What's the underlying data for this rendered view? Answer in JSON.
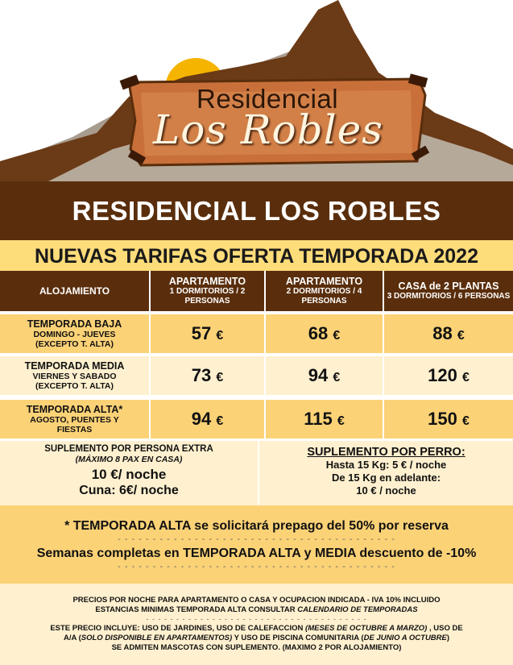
{
  "logo": {
    "line1": "Residencial",
    "line2": "Los Robles"
  },
  "banner_title": "RESIDENCIAL LOS ROBLES",
  "subtitle": "NUEVAS TARIFAS OFERTA TEMPORADA 2022",
  "table": {
    "header": {
      "col0": "ALOJAMIENTO",
      "col1_main": "APARTAMENTO",
      "col1_sub": "1 DORMITORIOS / 2 PERSONAS",
      "col2_main": "APARTAMENTO",
      "col2_sub": "2 DORMITORIOS / 4 PERSONAS",
      "col3_main": "CASA de 2 PLANTAS",
      "col3_sub": "3 DORMITORIOS / 6 PERSONAS"
    },
    "rows": [
      {
        "name": "TEMPORADA BAJA",
        "sub1": "DOMINGO - JUEVES",
        "sub2": "(EXCEPTO T. ALTA)",
        "p1": "57",
        "p2": "68",
        "p3": "88"
      },
      {
        "name": "TEMPORADA MEDIA",
        "sub1": "VIERNES Y SABADO",
        "sub2": "(EXCEPTO T. ALTA)",
        "p1": "73",
        "p2": "94",
        "p3": "120"
      },
      {
        "name": "TEMPORADA ALTA*",
        "sub1": "AGOSTO, PUENTES Y",
        "sub2": "FIESTAS",
        "p1": "94",
        "p2": "115",
        "p3": "150"
      }
    ],
    "currency": "€"
  },
  "supplement": {
    "person_title": "SUPLEMENTO POR PERSONA EXTRA",
    "person_max": "(MÁXIMO 8 PAX EN CASA)",
    "person_price": "10 €/ noche",
    "cradle": "Cuna: 6€/ noche",
    "dog_title": "SUPLEMENTO POR PERRO:",
    "dog_1": "Hasta 15 Kg: 5 € / noche",
    "dog_2": "De 15 Kg en adelante:",
    "dog_3": "10 € / noche"
  },
  "notes": {
    "note_1": "* TEMPORADA ALTA se solicitará prepago del 50% por reserva",
    "dashes": "- - - - - - - - - - - - - - - - - - - - - - - - - - - - - - - - - - - - - - - -",
    "note_2": "Semanas completas en TEMPORADA ALTA y MEDIA descuento de -10%"
  },
  "footer": {
    "line_1": "PRECIOS POR NOCHE PARA APARTAMENTO O CASA Y OCUPACION INDICADA - IVA 10% INCLUIDO",
    "line_2a": "ESTANCIAS MINIMAS TEMPORADA ALTA CONSULTAR ",
    "line_2b": "CALENDARIO DE TEMPORADAS",
    "dashes": "- - - - - - - - - - - - - - - - - - - - - - - - - - - - - - - - - - - - -",
    "line_3a": "ESTE PRECIO INCLUYE: USO DE JARDINES, USO DE CALEFACCION ",
    "line_3b": "(MESES DE OCTUBRE A MARZO)",
    "line_3c": " , USO DE",
    "line_4a": "A/A (",
    "line_4b": "SOLO DISPONIBLE EN APARTAMENTOS)",
    "line_4c": " Y USO DE PISCINA COMUNITARIA (",
    "line_4d": "DE JUNIO A OCTUBRE",
    "line_4e": ")",
    "line_5": "SE ADMITEN MASCOTAS CON SUPLEMENTO. (MAXIMO 2 POR ALOJAMIENTO)"
  },
  "colors": {
    "brown": "#5a2e0c",
    "gold": "#fcd277",
    "cream": "#fff0cf",
    "sun": "#f5b400"
  }
}
